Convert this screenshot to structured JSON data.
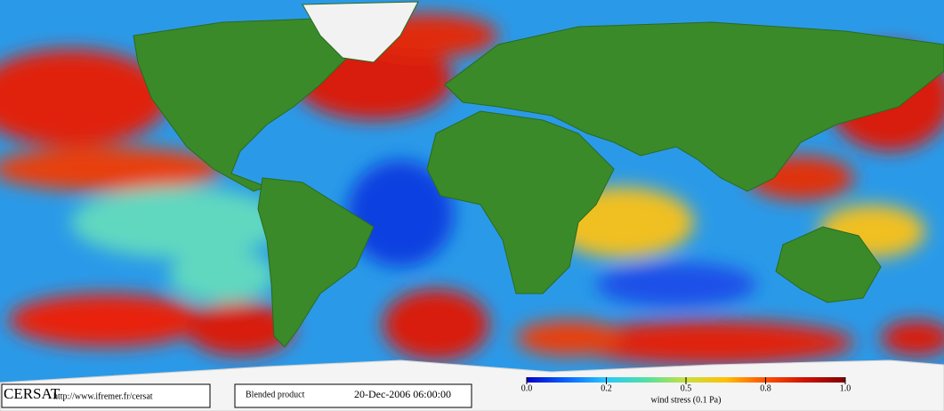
{
  "footer": {
    "logo": "CERSAT",
    "url": "http://www.ifremer.fr/cersat",
    "product": "Blended product",
    "timestamp": "20-Dec-2006 06:00:00"
  },
  "colorbar": {
    "label": "wind stress (0.1 Pa)",
    "ticks": [
      {
        "value": 0,
        "label": "0.0"
      },
      0.2,
      0.5,
      0.8,
      {
        "value": 1,
        "label": "1.0"
      }
    ],
    "colors": [
      "#0000c8",
      "#0a64ff",
      "#28c8ff",
      "#50e0a0",
      "#c8e040",
      "#ffc000",
      "#ff5000",
      "#d01000",
      "#800000"
    ]
  }
}
